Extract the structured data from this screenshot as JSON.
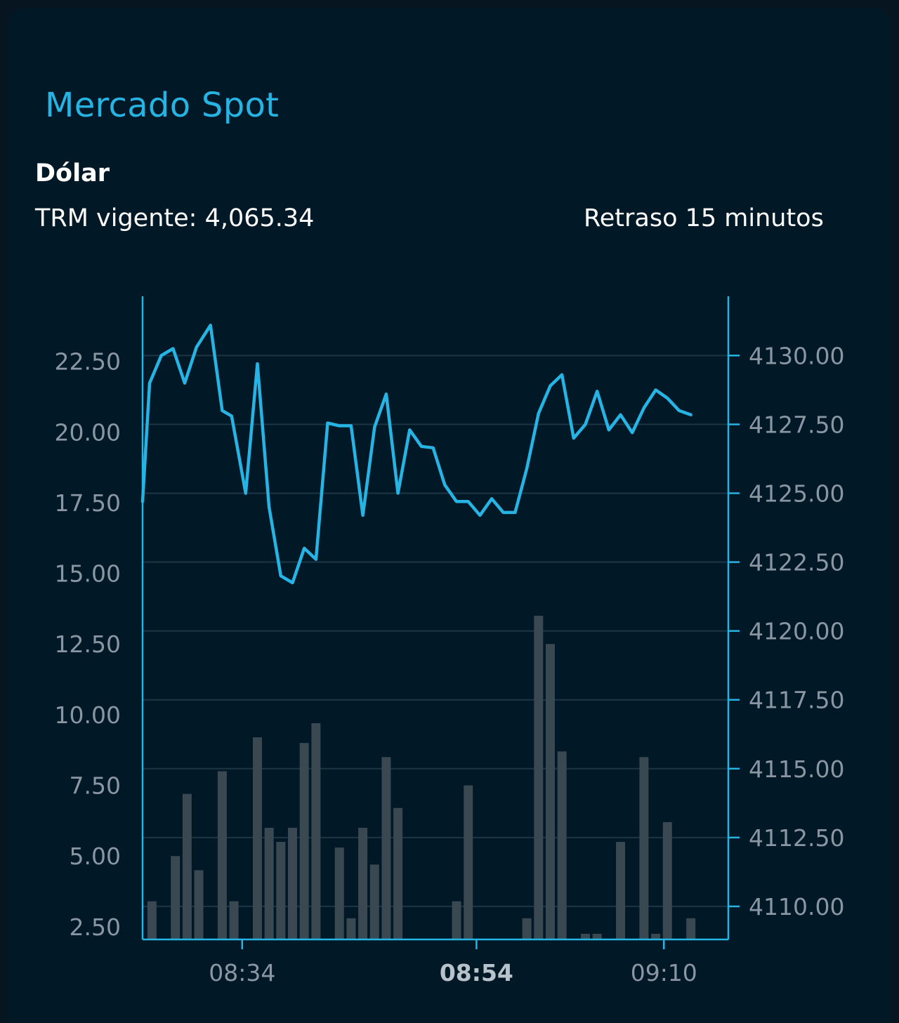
{
  "header": {
    "title": "Mercado Spot",
    "subtitle": "Dólar",
    "trm_text": "TRM vigente: 4,065.34",
    "delay_text": "Retraso 15 minutos"
  },
  "colors": {
    "background": "#011827",
    "accent": "#25b4e3",
    "bars": "#3a4852",
    "grid": "#1d3645",
    "tick_text": "#8a97a3"
  },
  "chart_data": {
    "type": "line+bar",
    "title": "",
    "x_ticks": [
      {
        "label": "08:34",
        "x": 8.5,
        "bold": false
      },
      {
        "label": "08:54",
        "x": 28.5,
        "bold": true
      },
      {
        "label": "09:10",
        "x": 44.5,
        "bold": false
      }
    ],
    "x_range": [
      0,
      50
    ],
    "left_axis": {
      "ticks": [
        "22.50",
        "20.00",
        "17.50",
        "15.00",
        "12.50",
        "10.00",
        "7.50",
        "5.00",
        "2.50"
      ],
      "range": [
        2.05,
        24.8
      ]
    },
    "right_axis": {
      "ticks": [
        "4130.00",
        "4127.50",
        "4125.00",
        "4122.50",
        "4120.00",
        "4117.50",
        "4115.00",
        "4112.50",
        "4110.00"
      ],
      "range": [
        4108.8,
        4132.15
      ]
    },
    "grid": true,
    "series": [
      {
        "type": "line",
        "axis": "right",
        "color": "#25b4e3",
        "points": [
          [
            0.0,
            4124.7
          ],
          [
            0.6,
            4129.0
          ],
          [
            1.6,
            4130.0
          ],
          [
            2.6,
            4130.25
          ],
          [
            3.6,
            4129.0
          ],
          [
            4.6,
            4130.3
          ],
          [
            5.8,
            4131.1
          ],
          [
            6.8,
            4128.0
          ],
          [
            7.6,
            4127.8
          ],
          [
            8.8,
            4125.0
          ],
          [
            9.8,
            4129.7
          ],
          [
            10.8,
            4124.5
          ],
          [
            11.8,
            4122.0
          ],
          [
            12.8,
            4121.75
          ],
          [
            13.8,
            4123.0
          ],
          [
            14.8,
            4122.6
          ],
          [
            15.8,
            4127.55
          ],
          [
            16.8,
            4127.45
          ],
          [
            17.8,
            4127.45
          ],
          [
            18.8,
            4124.2
          ],
          [
            19.8,
            4127.4
          ],
          [
            20.8,
            4128.6
          ],
          [
            21.8,
            4125.0
          ],
          [
            22.8,
            4127.3
          ],
          [
            23.8,
            4126.7
          ],
          [
            24.8,
            4126.65
          ],
          [
            25.8,
            4125.3
          ],
          [
            26.8,
            4124.7
          ],
          [
            27.8,
            4124.7
          ],
          [
            28.8,
            4124.2
          ],
          [
            29.8,
            4124.8
          ],
          [
            30.8,
            4124.3
          ],
          [
            31.8,
            4124.3
          ],
          [
            32.8,
            4125.9
          ],
          [
            33.8,
            4127.9
          ],
          [
            34.8,
            4128.9
          ],
          [
            35.8,
            4129.3
          ],
          [
            36.8,
            4127.0
          ],
          [
            37.8,
            4127.5
          ],
          [
            38.8,
            4128.7
          ],
          [
            39.8,
            4127.3
          ],
          [
            40.8,
            4127.85
          ],
          [
            41.8,
            4127.2
          ],
          [
            42.8,
            4128.1
          ],
          [
            43.8,
            4128.75
          ],
          [
            44.8,
            4128.45
          ],
          [
            45.8,
            4128.0
          ],
          [
            46.8,
            4127.85
          ]
        ]
      },
      {
        "type": "bar",
        "axis": "left",
        "color": "#3a4852",
        "bars": [
          [
            0.8,
            3.4
          ],
          [
            2.8,
            5.0
          ],
          [
            3.8,
            7.2
          ],
          [
            4.8,
            4.5
          ],
          [
            6.8,
            8.0
          ],
          [
            7.8,
            3.4
          ],
          [
            9.8,
            9.2
          ],
          [
            10.8,
            6.0
          ],
          [
            11.8,
            5.5
          ],
          [
            12.8,
            6.0
          ],
          [
            13.8,
            9.0
          ],
          [
            14.8,
            9.7
          ],
          [
            16.8,
            5.3
          ],
          [
            17.8,
            2.8
          ],
          [
            18.8,
            6.0
          ],
          [
            19.8,
            4.7
          ],
          [
            20.8,
            8.5
          ],
          [
            21.8,
            6.7
          ],
          [
            26.8,
            3.4
          ],
          [
            27.8,
            7.5
          ],
          [
            32.8,
            2.8
          ],
          [
            33.8,
            13.5
          ],
          [
            34.8,
            12.5
          ],
          [
            35.8,
            8.7
          ],
          [
            37.8,
            2.25
          ],
          [
            38.8,
            2.25
          ],
          [
            40.8,
            5.5
          ],
          [
            42.8,
            8.5
          ],
          [
            43.8,
            2.25
          ],
          [
            44.8,
            6.2
          ],
          [
            46.8,
            2.8
          ]
        ]
      }
    ]
  }
}
